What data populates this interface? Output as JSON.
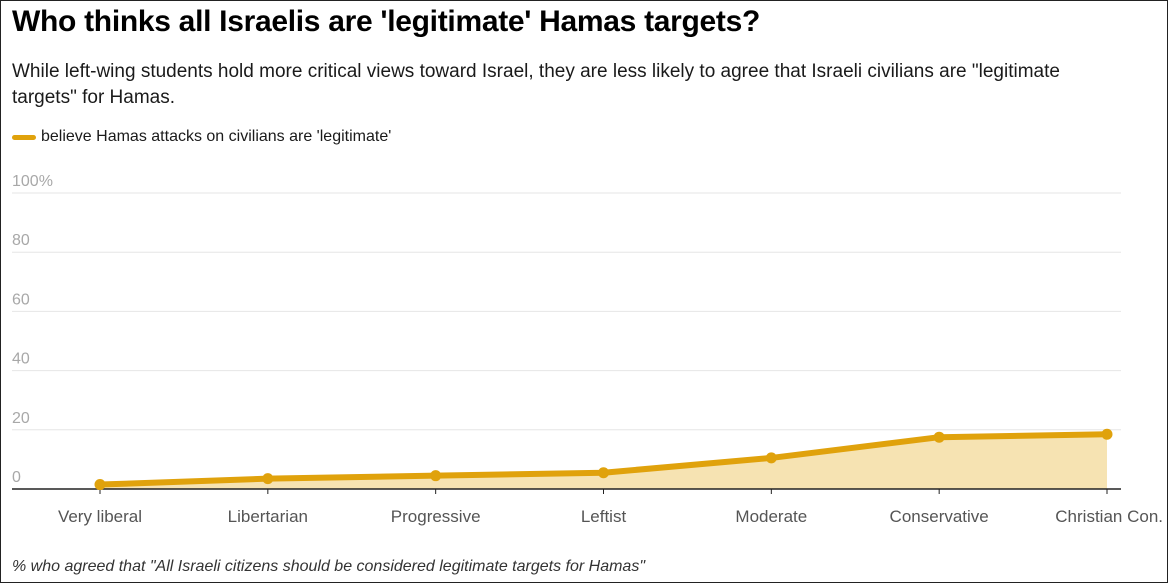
{
  "title": "Who thinks all Israelis are 'legitimate' Hamas targets?",
  "subtitle": "While left-wing students hold more critical views toward Israel, they are less likely to agree that Israeli civilians are \"legitimate targets\" for Hamas.",
  "footnote": "% who agreed that \"All Israeli citizens should be considered legitimate targets for Hamas\"",
  "colors": {
    "line": "#e0a20c",
    "area": "#f6e3b2",
    "grid": "#e6e6e6",
    "axis": "#222222"
  },
  "chart_data": {
    "type": "area",
    "categories": [
      "Very liberal",
      "Libertarian",
      "Progressive",
      "Leftist",
      "Moderate",
      "Conservative",
      "Christian Con."
    ],
    "series": [
      {
        "name": "believe Hamas attacks on civilians are 'legitimate'",
        "values": [
          1.5,
          3.5,
          4.5,
          5.5,
          10.5,
          17.5,
          18.5
        ]
      }
    ],
    "yticks": [
      "0",
      "20",
      "40",
      "60",
      "80",
      "100%"
    ],
    "ytick_values": [
      0,
      20,
      40,
      60,
      80,
      100
    ],
    "ylim": [
      0,
      100
    ],
    "grid": true,
    "legend_position": "top-left"
  }
}
